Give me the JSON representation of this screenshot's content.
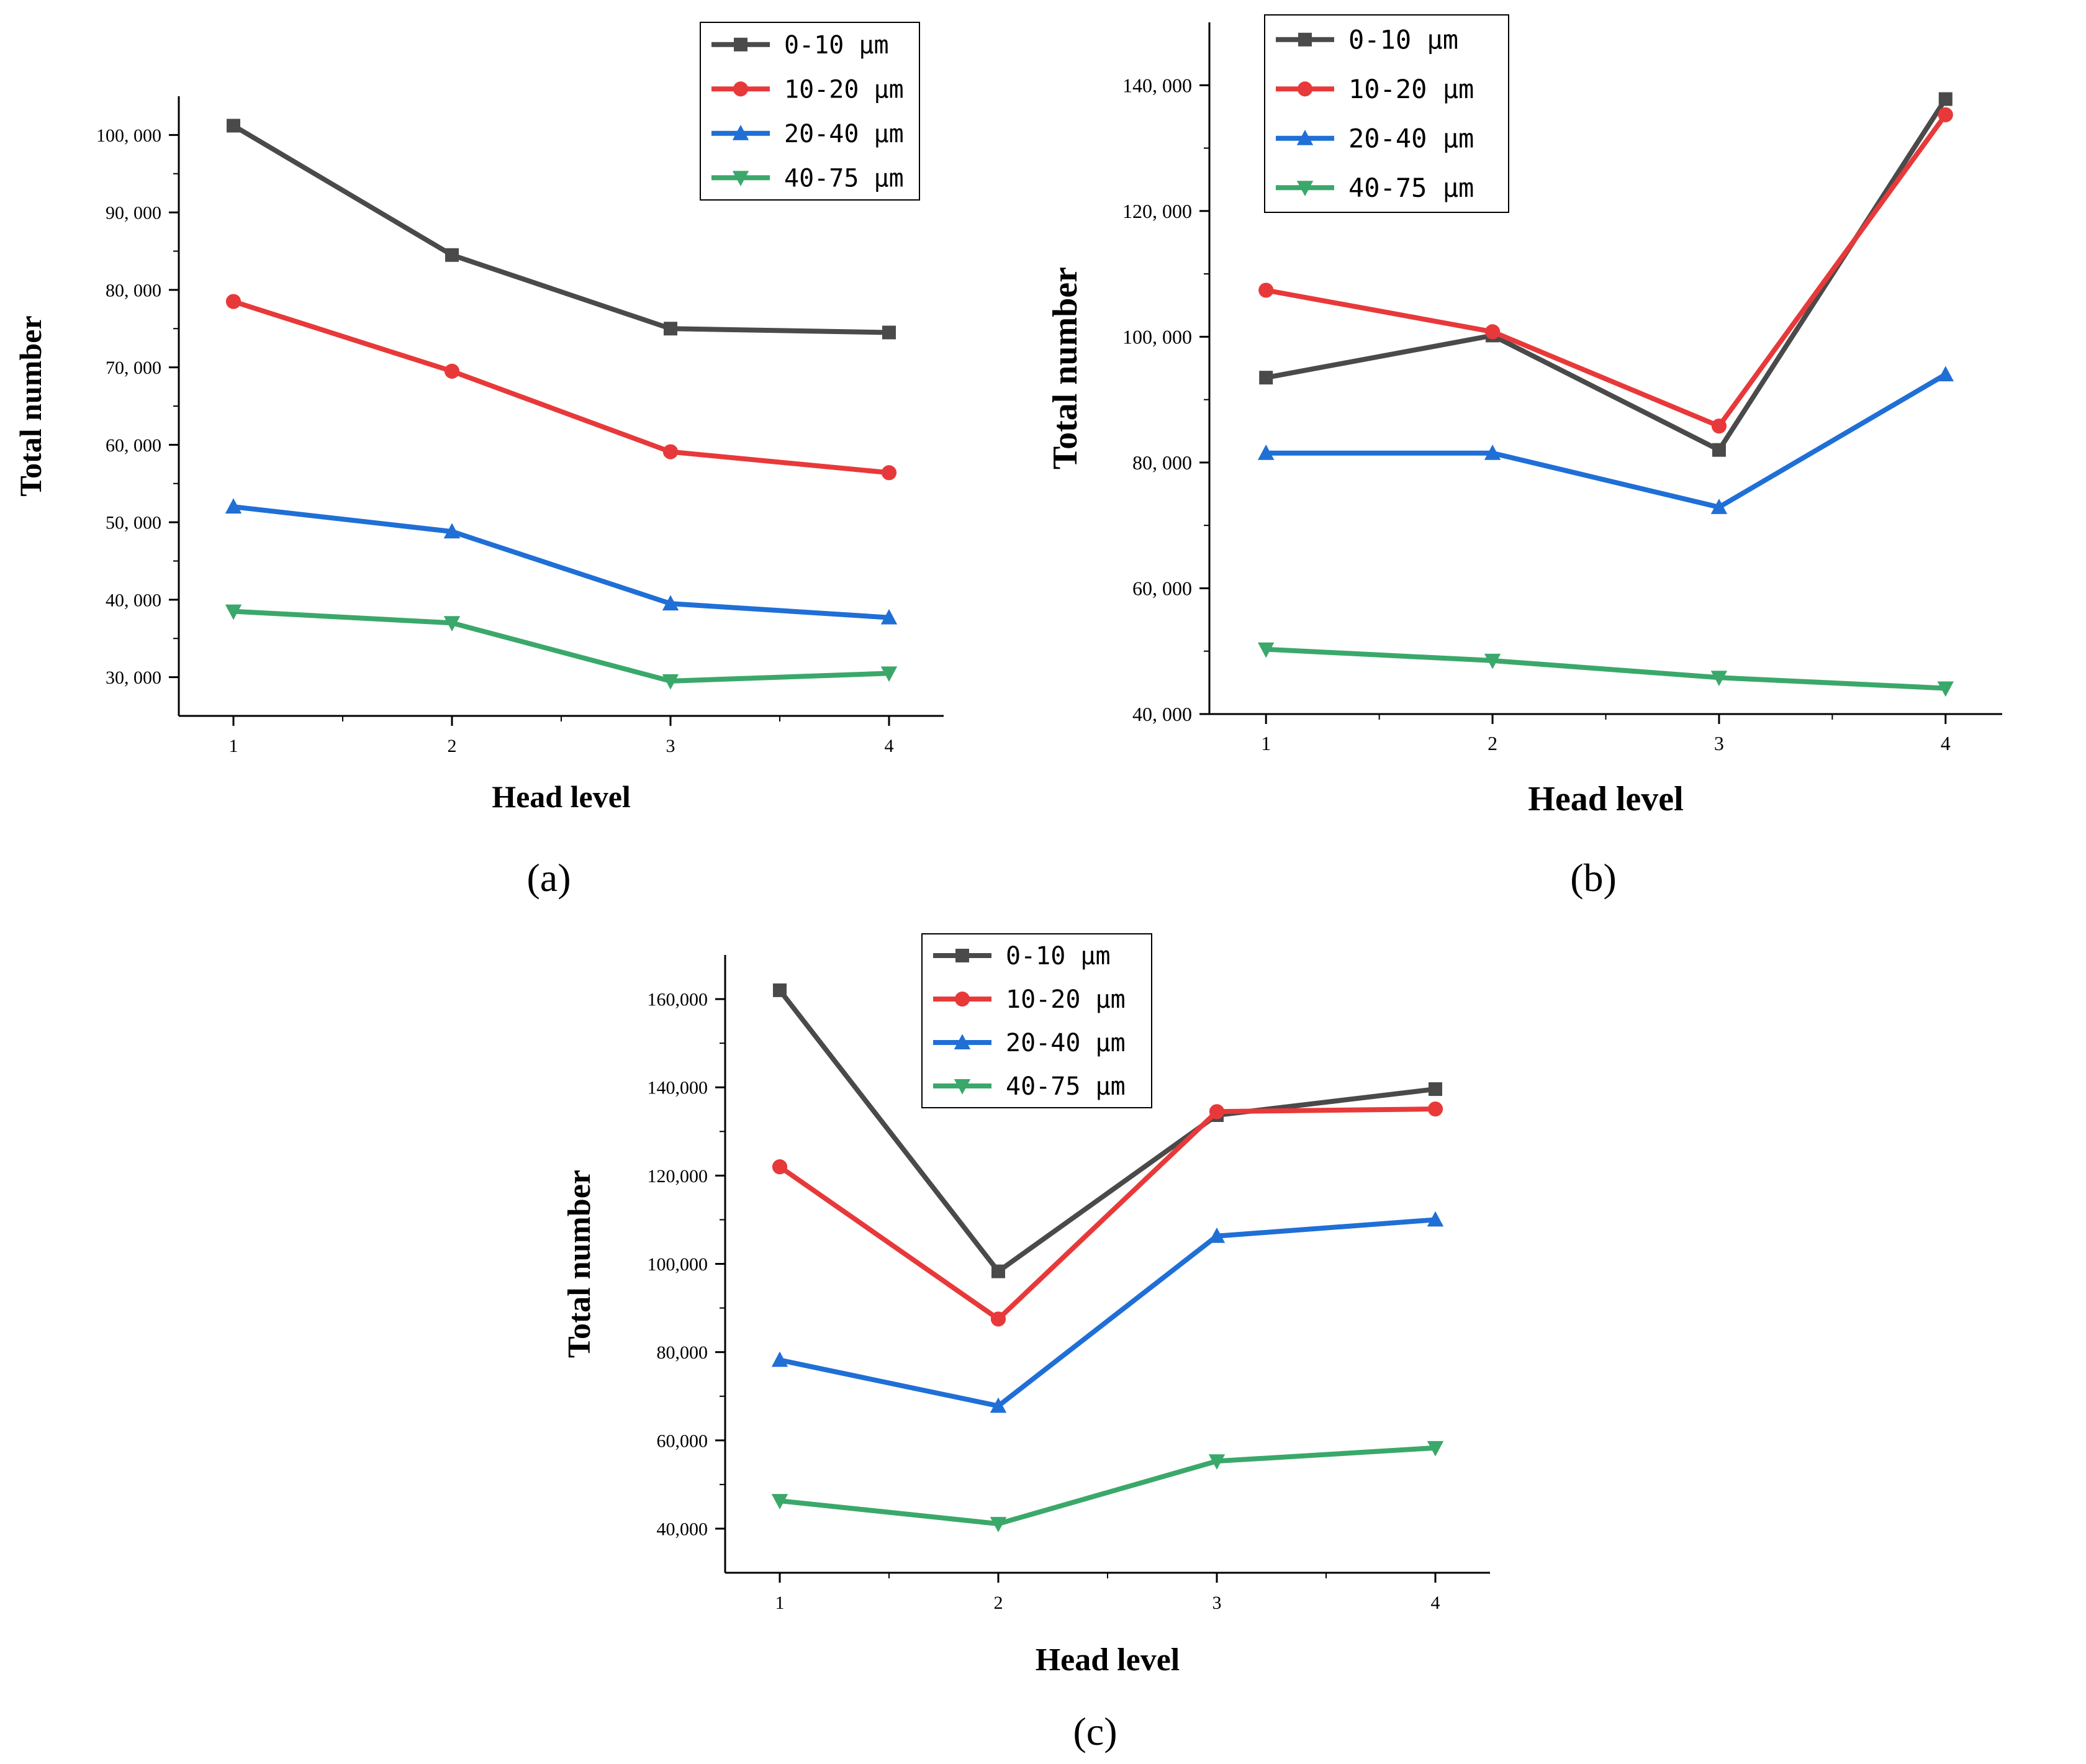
{
  "colors": {
    "axis": "#000000",
    "legend_border": "#000000",
    "series": [
      "#4a4a4a",
      "#e8393a",
      "#1f6fd6",
      "#3aa86a"
    ]
  },
  "series_markers": [
    "square",
    "circle",
    "triangle-up",
    "triangle-down"
  ],
  "chart_data": [
    {
      "id": "a",
      "type": "line",
      "panel_label": "(a)",
      "xlabel": "Head level",
      "ylabel": "Total number",
      "x": [
        1,
        2,
        3,
        4
      ],
      "x_tick_labels": [
        "1",
        "2",
        "3",
        "4"
      ],
      "xlim": [
        0.75,
        4.25
      ],
      "ylim": [
        25000,
        105000
      ],
      "y_ticks": [
        30000,
        40000,
        50000,
        60000,
        70000,
        80000,
        90000,
        100000
      ],
      "y_tick_labels": [
        "30, 000",
        "40, 000",
        "50, 000",
        "60, 000",
        "70, 000",
        "80, 000",
        "90, 000",
        "100, 000"
      ],
      "grid": false,
      "legend_position": "top-right",
      "series": [
        {
          "name": "0-10 μm",
          "values": [
            101200,
            84500,
            75000,
            74500
          ]
        },
        {
          "name": "10-20 μm",
          "values": [
            78500,
            69500,
            59100,
            56400
          ]
        },
        {
          "name": "20-40 μm",
          "values": [
            52000,
            48800,
            39500,
            37700
          ]
        },
        {
          "name": "40-75 μm",
          "values": [
            38500,
            37000,
            29500,
            30500
          ]
        }
      ]
    },
    {
      "id": "b",
      "type": "line",
      "panel_label": "(b)",
      "xlabel": "Head level",
      "ylabel": "Total number",
      "x": [
        1,
        2,
        3,
        4
      ],
      "x_tick_labels": [
        "1",
        "2",
        "3",
        "4"
      ],
      "xlim": [
        0.75,
        4.25
      ],
      "ylim": [
        40000,
        150000
      ],
      "y_ticks": [
        40000,
        60000,
        80000,
        100000,
        120000,
        140000
      ],
      "y_tick_labels": [
        "40, 000",
        "60, 000",
        "80, 000",
        "100, 000",
        "120, 000",
        "140, 000"
      ],
      "grid": false,
      "legend_position": "top-left",
      "series": [
        {
          "name": "0-10 μm",
          "values": [
            93500,
            100200,
            82000,
            137800
          ]
        },
        {
          "name": "10-20 μm",
          "values": [
            107400,
            100800,
            85800,
            135300
          ]
        },
        {
          "name": "20-40 μm",
          "values": [
            81500,
            81500,
            72900,
            94000
          ]
        },
        {
          "name": "40-75 μm",
          "values": [
            50300,
            48500,
            45800,
            44100
          ]
        }
      ]
    },
    {
      "id": "c",
      "type": "line",
      "panel_label": "(c)",
      "xlabel": "Head level",
      "ylabel": "Total number",
      "x": [
        1,
        2,
        3,
        4
      ],
      "x_tick_labels": [
        "1",
        "2",
        "3",
        "4"
      ],
      "xlim": [
        0.75,
        4.25
      ],
      "ylim": [
        30000,
        170000
      ],
      "y_ticks": [
        40000,
        60000,
        80000,
        100000,
        120000,
        140000,
        160000
      ],
      "y_tick_labels": [
        "40,000",
        "60,000",
        "80,000",
        "100,000",
        "120,000",
        "140,000",
        "160,000"
      ],
      "grid": false,
      "legend_position": "top-center",
      "series": [
        {
          "name": "0-10 μm",
          "values": [
            162000,
            98300,
            133700,
            139600
          ]
        },
        {
          "name": "10-20 μm",
          "values": [
            122000,
            87500,
            134500,
            135100
          ]
        },
        {
          "name": "20-40 μm",
          "values": [
            78200,
            67800,
            106300,
            110000
          ]
        },
        {
          "name": "40-75 μm",
          "values": [
            46300,
            41100,
            55300,
            58300
          ]
        }
      ]
    }
  ]
}
